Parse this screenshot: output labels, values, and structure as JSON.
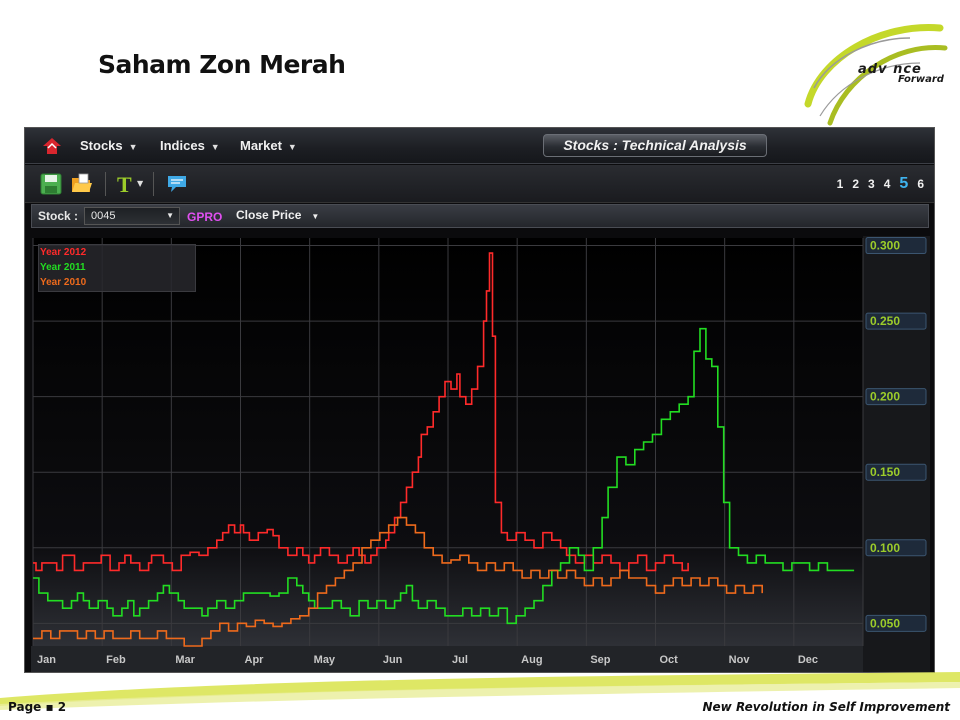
{
  "slide": {
    "title": "Saham Zon Merah",
    "logo_text": "adv nce",
    "logo_sub": "Forward",
    "page_label": "Page ▪ 2",
    "tagline": "New Revolution in Self Improvement"
  },
  "app": {
    "menu": [
      {
        "label": "Stocks"
      },
      {
        "label": "Indices"
      },
      {
        "label": "Market"
      }
    ],
    "panel_title": "Stocks : Technical Analysis",
    "toolbar_icons": [
      "save-icon",
      "open-folder-icon",
      "text-tool-icon",
      "comment-icon"
    ],
    "pages": [
      "1",
      "2",
      "3",
      "4",
      "5",
      "6"
    ],
    "active_page": "5",
    "stock_label": "Stock :",
    "stock_code": "0045",
    "stock_name": "GPRO",
    "price_type": "Close Price",
    "colors": {
      "accent": "#3fb4f0",
      "year_2012": "#ff2a2a",
      "year_2011": "#22dd22",
      "year_2010": "#ee6a1c",
      "stock_name": "#e050f0"
    }
  },
  "chart_data": {
    "type": "line",
    "x": [
      "Jan",
      "Feb",
      "Mar",
      "Apr",
      "May",
      "Jun",
      "Jul",
      "Aug",
      "Sep",
      "Oct",
      "Nov",
      "Dec"
    ],
    "y_ticks": [
      "0.300",
      "0.250",
      "0.200",
      "0.150",
      "0.100",
      "0.050"
    ],
    "ylim": [
      0.035,
      0.305
    ],
    "grid": true,
    "legend_position": "top-left",
    "series": [
      {
        "name": "Year 2012",
        "color": "#ff2a2a",
        "points": [
          [
            0.0,
            0.09
          ],
          [
            0.1,
            0.085
          ],
          [
            0.3,
            0.09
          ],
          [
            0.5,
            0.09
          ],
          [
            0.8,
            0.085
          ],
          [
            1.0,
            0.095
          ],
          [
            1.2,
            0.095
          ],
          [
            1.4,
            0.085
          ],
          [
            1.7,
            0.09
          ],
          [
            2.0,
            0.09
          ],
          [
            2.3,
            0.095
          ],
          [
            2.6,
            0.085
          ],
          [
            2.9,
            0.09
          ],
          [
            3.1,
            0.095
          ],
          [
            3.3,
            0.09
          ],
          [
            3.6,
            0.085
          ],
          [
            3.9,
            0.09
          ],
          [
            4.0,
            0.095
          ],
          [
            4.2,
            0.095
          ],
          [
            4.4,
            0.09
          ],
          [
            4.7,
            0.085
          ],
          [
            5.0,
            0.095
          ],
          [
            5.3,
            0.097
          ],
          [
            5.6,
            0.095
          ],
          [
            5.9,
            0.1
          ],
          [
            6.1,
            0.1
          ],
          [
            6.2,
            0.105
          ],
          [
            6.4,
            0.11
          ],
          [
            6.6,
            0.115
          ],
          [
            6.8,
            0.11
          ],
          [
            7.0,
            0.115
          ],
          [
            7.1,
            0.11
          ],
          [
            7.3,
            0.105
          ],
          [
            7.6,
            0.11
          ],
          [
            7.9,
            0.112
          ],
          [
            8.1,
            0.108
          ],
          [
            8.3,
            0.1
          ],
          [
            8.6,
            0.095
          ],
          [
            8.9,
            0.1
          ],
          [
            9.1,
            0.095
          ],
          [
            9.3,
            0.09
          ],
          [
            9.5,
            0.095
          ],
          [
            9.7,
            0.1
          ],
          [
            10.0,
            0.095
          ],
          [
            10.3,
            0.09
          ],
          [
            10.6,
            0.095
          ],
          [
            10.8,
            0.1
          ],
          [
            11.0,
            0.095
          ],
          [
            11.2,
            0.09
          ],
          [
            11.4,
            0.095
          ],
          [
            11.6,
            0.1
          ],
          [
            11.9,
            0.105
          ],
          [
            12.0,
            0.11
          ],
          [
            12.2,
            0.12
          ],
          [
            12.4,
            0.13
          ],
          [
            12.6,
            0.14
          ],
          [
            12.8,
            0.15
          ],
          [
            13.0,
            0.16
          ],
          [
            13.1,
            0.175
          ],
          [
            13.3,
            0.18
          ],
          [
            13.5,
            0.19
          ],
          [
            13.7,
            0.2
          ],
          [
            13.9,
            0.21
          ],
          [
            14.1,
            0.205
          ],
          [
            14.3,
            0.215
          ],
          [
            14.4,
            0.2
          ],
          [
            14.6,
            0.195
          ],
          [
            14.8,
            0.205
          ],
          [
            15.0,
            0.22
          ],
          [
            15.2,
            0.25
          ],
          [
            15.3,
            0.27
          ],
          [
            15.4,
            0.295
          ],
          [
            15.5,
            0.24
          ],
          [
            15.6,
            0.13
          ],
          [
            15.8,
            0.11
          ],
          [
            16.0,
            0.105
          ],
          [
            16.3,
            0.11
          ],
          [
            16.6,
            0.105
          ],
          [
            16.9,
            0.1
          ],
          [
            17.2,
            0.11
          ],
          [
            17.5,
            0.105
          ],
          [
            17.8,
            0.1
          ],
          [
            18.0,
            0.095
          ],
          [
            18.3,
            0.09
          ],
          [
            18.6,
            0.095
          ],
          [
            18.9,
            0.09
          ],
          [
            19.2,
            0.095
          ],
          [
            19.5,
            0.09
          ],
          [
            19.8,
            0.085
          ],
          [
            20.1,
            0.09
          ],
          [
            20.4,
            0.095
          ],
          [
            20.7,
            0.085
          ],
          [
            21.0,
            0.09
          ],
          [
            21.3,
            0.095
          ],
          [
            21.6,
            0.09
          ],
          [
            21.9,
            0.085
          ],
          [
            22.1,
            0.09
          ]
        ]
      },
      {
        "name": "Year 2011",
        "color": "#22dd22",
        "points": [
          [
            0.0,
            0.08
          ],
          [
            0.2,
            0.07
          ],
          [
            0.5,
            0.065
          ],
          [
            0.8,
            0.065
          ],
          [
            1.0,
            0.06
          ],
          [
            1.3,
            0.065
          ],
          [
            1.5,
            0.07
          ],
          [
            1.7,
            0.065
          ],
          [
            1.9,
            0.06
          ],
          [
            2.2,
            0.065
          ],
          [
            2.5,
            0.06
          ],
          [
            2.7,
            0.055
          ],
          [
            3.0,
            0.06
          ],
          [
            3.2,
            0.065
          ],
          [
            3.4,
            0.055
          ],
          [
            3.6,
            0.06
          ],
          [
            3.9,
            0.065
          ],
          [
            4.2,
            0.07
          ],
          [
            4.4,
            0.075
          ],
          [
            4.6,
            0.07
          ],
          [
            4.9,
            0.065
          ],
          [
            5.1,
            0.06
          ],
          [
            5.4,
            0.06
          ],
          [
            5.7,
            0.055
          ],
          [
            5.9,
            0.06
          ],
          [
            6.2,
            0.065
          ],
          [
            6.5,
            0.06
          ],
          [
            6.8,
            0.065
          ],
          [
            7.1,
            0.07
          ],
          [
            7.4,
            0.07
          ],
          [
            7.7,
            0.07
          ],
          [
            8.0,
            0.068
          ],
          [
            8.3,
            0.07
          ],
          [
            8.6,
            0.08
          ],
          [
            8.9,
            0.075
          ],
          [
            9.1,
            0.07
          ],
          [
            9.3,
            0.065
          ],
          [
            9.5,
            0.06
          ],
          [
            9.8,
            0.06
          ],
          [
            10.1,
            0.065
          ],
          [
            10.4,
            0.06
          ],
          [
            10.7,
            0.055
          ],
          [
            11.0,
            0.065
          ],
          [
            11.3,
            0.06
          ],
          [
            11.6,
            0.065
          ],
          [
            11.9,
            0.06
          ],
          [
            12.2,
            0.065
          ],
          [
            12.4,
            0.07
          ],
          [
            12.6,
            0.075
          ],
          [
            12.8,
            0.065
          ],
          [
            13.0,
            0.06
          ],
          [
            13.3,
            0.065
          ],
          [
            13.6,
            0.06
          ],
          [
            13.9,
            0.055
          ],
          [
            14.2,
            0.055
          ],
          [
            14.5,
            0.06
          ],
          [
            14.8,
            0.055
          ],
          [
            15.1,
            0.06
          ],
          [
            15.4,
            0.055
          ],
          [
            15.7,
            0.06
          ],
          [
            16.0,
            0.05
          ],
          [
            16.3,
            0.055
          ],
          [
            16.6,
            0.06
          ],
          [
            16.9,
            0.065
          ],
          [
            17.2,
            0.075
          ],
          [
            17.5,
            0.085
          ],
          [
            17.8,
            0.09
          ],
          [
            18.1,
            0.1
          ],
          [
            18.4,
            0.095
          ],
          [
            18.6,
            0.085
          ],
          [
            18.9,
            0.1
          ],
          [
            19.2,
            0.12
          ],
          [
            19.4,
            0.14
          ],
          [
            19.7,
            0.16
          ],
          [
            20.0,
            0.155
          ],
          [
            20.3,
            0.165
          ],
          [
            20.6,
            0.17
          ],
          [
            20.9,
            0.175
          ],
          [
            21.2,
            0.185
          ],
          [
            21.5,
            0.19
          ],
          [
            21.8,
            0.195
          ],
          [
            22.1,
            0.2
          ],
          [
            22.3,
            0.23
          ],
          [
            22.5,
            0.245
          ],
          [
            22.7,
            0.225
          ],
          [
            22.9,
            0.22
          ],
          [
            23.1,
            0.18
          ],
          [
            23.3,
            0.13
          ],
          [
            23.5,
            0.1
          ],
          [
            23.8,
            0.095
          ],
          [
            24.1,
            0.09
          ],
          [
            24.4,
            0.095
          ],
          [
            24.7,
            0.09
          ],
          [
            25.0,
            0.09
          ],
          [
            25.3,
            0.085
          ],
          [
            25.6,
            0.09
          ],
          [
            25.9,
            0.09
          ],
          [
            26.2,
            0.085
          ],
          [
            26.5,
            0.09
          ],
          [
            26.8,
            0.085
          ],
          [
            27.0,
            0.085
          ],
          [
            27.4,
            0.085
          ],
          [
            27.7,
            0.085
          ]
        ]
      },
      {
        "name": "Year 2010",
        "color": "#ee6a1c",
        "points": [
          [
            0.0,
            0.04
          ],
          [
            0.3,
            0.045
          ],
          [
            0.6,
            0.04
          ],
          [
            0.9,
            0.045
          ],
          [
            1.2,
            0.045
          ],
          [
            1.5,
            0.04
          ],
          [
            1.8,
            0.045
          ],
          [
            2.1,
            0.04
          ],
          [
            2.4,
            0.045
          ],
          [
            2.7,
            0.04
          ],
          [
            3.0,
            0.04
          ],
          [
            3.3,
            0.045
          ],
          [
            3.6,
            0.04
          ],
          [
            3.9,
            0.04
          ],
          [
            4.2,
            0.045
          ],
          [
            4.5,
            0.04
          ],
          [
            4.8,
            0.04
          ],
          [
            5.1,
            0.035
          ],
          [
            5.4,
            0.035
          ],
          [
            5.7,
            0.04
          ],
          [
            6.0,
            0.045
          ],
          [
            6.3,
            0.05
          ],
          [
            6.6,
            0.045
          ],
          [
            6.9,
            0.05
          ],
          [
            7.2,
            0.048
          ],
          [
            7.5,
            0.052
          ],
          [
            7.8,
            0.05
          ],
          [
            8.1,
            0.048
          ],
          [
            8.4,
            0.05
          ],
          [
            8.7,
            0.053
          ],
          [
            9.0,
            0.055
          ],
          [
            9.3,
            0.06
          ],
          [
            9.6,
            0.07
          ],
          [
            9.9,
            0.075
          ],
          [
            10.2,
            0.08
          ],
          [
            10.5,
            0.085
          ],
          [
            10.8,
            0.09
          ],
          [
            11.1,
            0.1
          ],
          [
            11.4,
            0.105
          ],
          [
            11.7,
            0.11
          ],
          [
            12.0,
            0.115
          ],
          [
            12.3,
            0.12
          ],
          [
            12.6,
            0.115
          ],
          [
            12.9,
            0.11
          ],
          [
            13.2,
            0.1
          ],
          [
            13.5,
            0.095
          ],
          [
            13.8,
            0.09
          ],
          [
            14.1,
            0.092
          ],
          [
            14.4,
            0.095
          ],
          [
            14.7,
            0.09
          ],
          [
            15.0,
            0.085
          ],
          [
            15.3,
            0.09
          ],
          [
            15.6,
            0.085
          ],
          [
            15.9,
            0.09
          ],
          [
            16.2,
            0.085
          ],
          [
            16.5,
            0.08
          ],
          [
            16.8,
            0.085
          ],
          [
            17.1,
            0.08
          ],
          [
            17.4,
            0.085
          ],
          [
            17.7,
            0.08
          ],
          [
            18.0,
            0.085
          ],
          [
            18.3,
            0.08
          ],
          [
            18.6,
            0.075
          ],
          [
            18.9,
            0.08
          ],
          [
            19.2,
            0.075
          ],
          [
            19.5,
            0.08
          ],
          [
            19.8,
            0.085
          ],
          [
            20.1,
            0.08
          ],
          [
            20.4,
            0.08
          ],
          [
            20.7,
            0.075
          ],
          [
            21.0,
            0.07
          ],
          [
            21.3,
            0.075
          ],
          [
            21.6,
            0.08
          ],
          [
            21.9,
            0.075
          ],
          [
            22.2,
            0.08
          ],
          [
            22.5,
            0.075
          ],
          [
            22.8,
            0.08
          ],
          [
            23.1,
            0.075
          ],
          [
            23.4,
            0.07
          ],
          [
            23.7,
            0.075
          ],
          [
            24.0,
            0.07
          ],
          [
            24.3,
            0.075
          ],
          [
            24.6,
            0.07
          ]
        ]
      }
    ]
  }
}
